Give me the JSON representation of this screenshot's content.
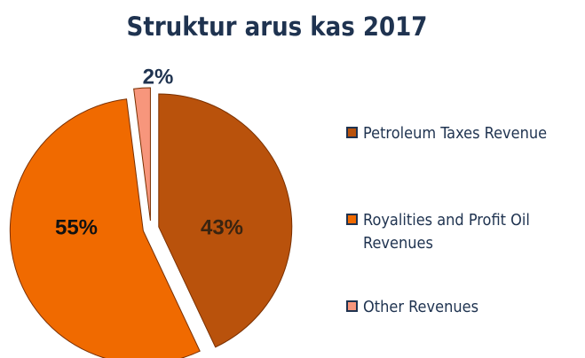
{
  "chart_data": {
    "type": "pie",
    "title": "Struktur arus kas 2017",
    "categories": [
      "Petroleum Taxes Revenue",
      "Royalities and Profit Oil Revenues",
      "Other Revenues"
    ],
    "values": [
      43,
      55,
      2
    ],
    "value_labels": [
      "43%",
      "55%",
      "2%"
    ],
    "colors": [
      "#b9520c",
      "#f06a00",
      "#f7967c"
    ],
    "legend": "right"
  }
}
